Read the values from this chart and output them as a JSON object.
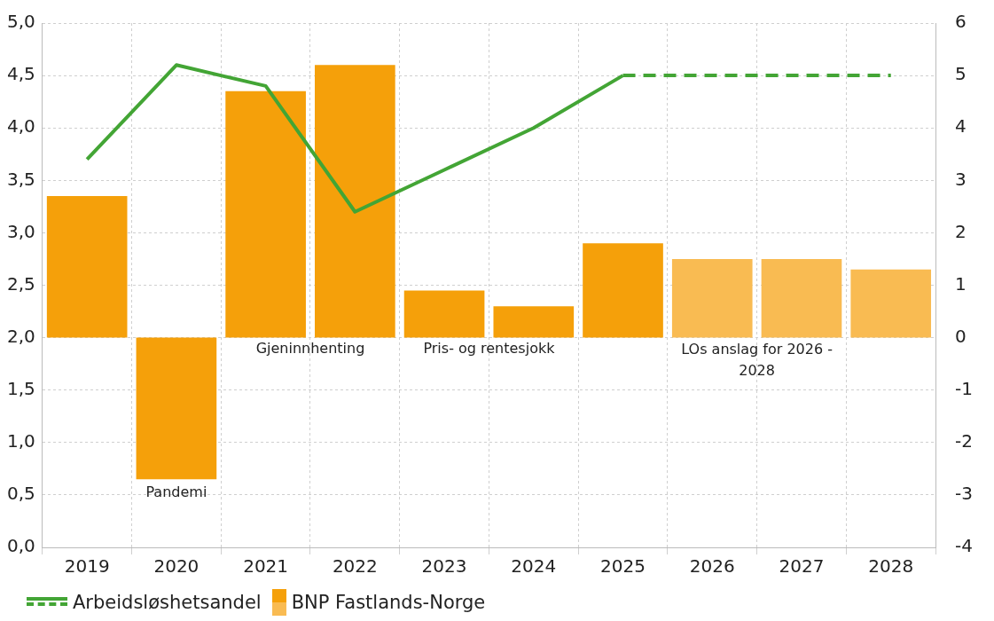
{
  "chart_data": {
    "type": "bar",
    "categories": [
      "2019",
      "2020",
      "2021",
      "2022",
      "2023",
      "2024",
      "2025",
      "2026",
      "2027",
      "2028"
    ],
    "series": [
      {
        "name": "Arbeidsløshetsandel",
        "type": "line",
        "color": "#43a535",
        "line_style": "solid",
        "values": [
          3.7,
          4.6,
          4.4,
          3.2,
          3.6,
          4.0,
          4.5,
          null,
          null,
          null
        ]
      },
      {
        "type": "line",
        "color": "#43a535",
        "line_style": "dashed",
        "values": [
          null,
          null,
          null,
          null,
          null,
          null,
          4.5,
          4.5,
          4.5,
          4.5
        ]
      },
      {
        "name": "BNP Fastlands-Norge",
        "axis": "y2",
        "colors": [
          "#f5a00a",
          "#f5a00a",
          "#f5a00a",
          "#f5a00a",
          "#f5a00a",
          "#f5a00a",
          "#f5a00a",
          "#f9bb52",
          "#f9bb52",
          "#f9bb52"
        ],
        "values": [
          2.7,
          -2.7,
          4.7,
          5.2,
          0.9,
          0.6,
          1.8,
          1.5,
          1.5,
          1.3
        ]
      }
    ],
    "ylim": [
      0,
      5
    ],
    "yticks": [
      {
        "value": 0,
        "label": "0,0"
      },
      {
        "value": 0.5,
        "label": "0,5"
      },
      {
        "value": 1,
        "label": "1,0"
      },
      {
        "value": 1.5,
        "label": "1,5"
      },
      {
        "value": 2,
        "label": "2,0"
      },
      {
        "value": 2.5,
        "label": "2,5"
      },
      {
        "value": 3,
        "label": "3,0"
      },
      {
        "value": 3.5,
        "label": "3,5"
      },
      {
        "value": 4,
        "label": "4,0"
      },
      {
        "value": 4.5,
        "label": "4,5"
      },
      {
        "value": 5,
        "label": "5,0"
      }
    ],
    "y2lim": [
      -4,
      6
    ],
    "y2ticks": [
      -4,
      -3,
      -2,
      -1,
      0,
      1,
      2,
      3,
      4,
      5,
      6
    ],
    "annotations": [
      "Pandemi",
      "Gjeninnhenting",
      "Pris- og rentesjokk",
      "LOs anslag for 2026 - 2028"
    ],
    "grid": true,
    "legend": "bottom left",
    "marker": "none"
  }
}
